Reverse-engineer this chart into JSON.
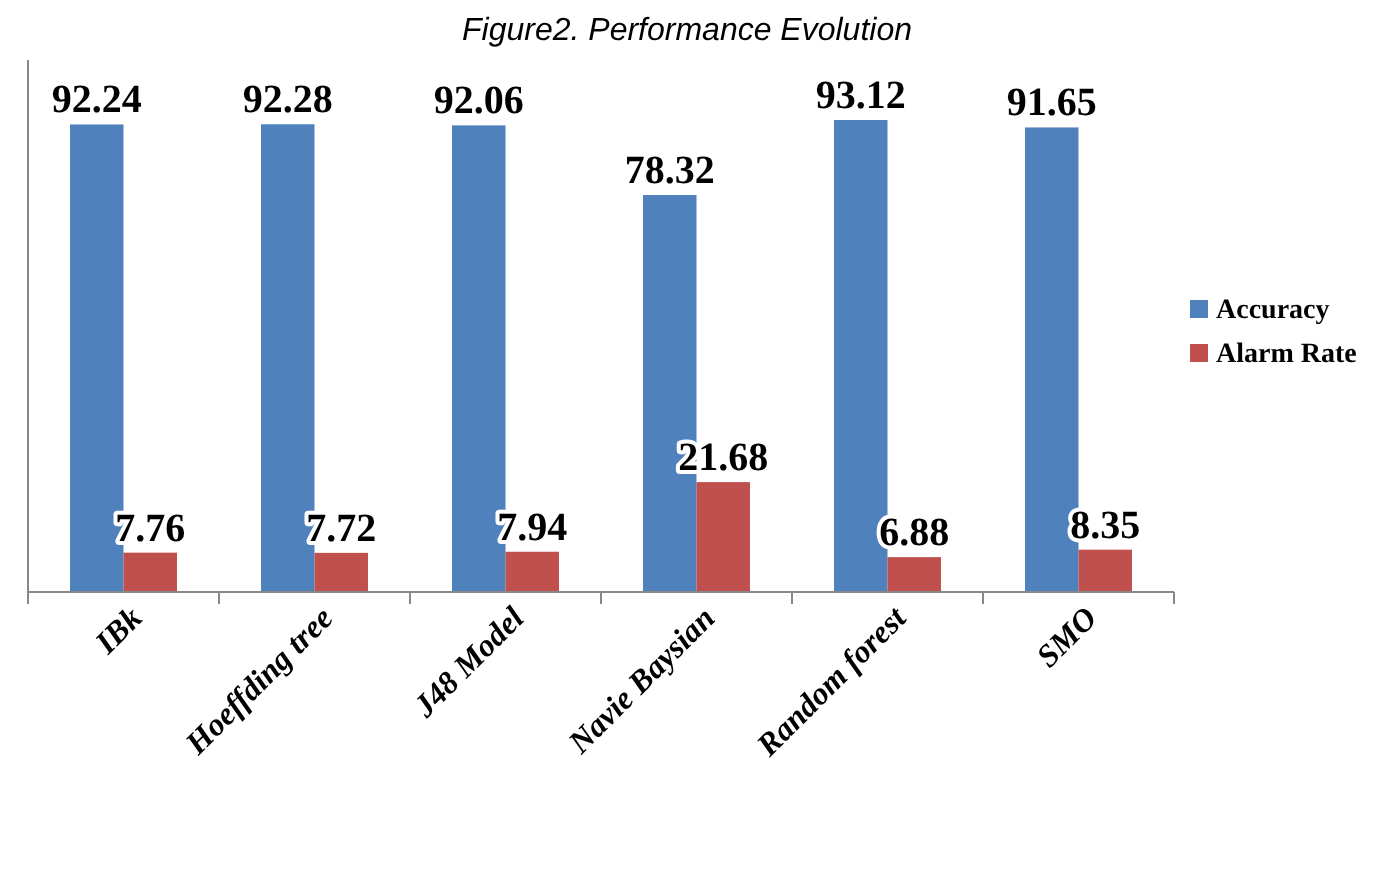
{
  "chart_data": {
    "type": "bar",
    "title": "Figure2. Performance Evolution",
    "categories": [
      "IBk",
      "Hoeffding tree",
      "J48 Model",
      "Navie Baysian",
      "Random forest",
      "SMO"
    ],
    "series": [
      {
        "name": "Accuracy",
        "color": "#4f81bd",
        "values": [
          92.24,
          92.28,
          92.06,
          78.32,
          93.12,
          91.65
        ]
      },
      {
        "name": "Alarm Rate",
        "color": "#c0504d",
        "values": [
          7.76,
          7.72,
          7.94,
          21.68,
          6.88,
          8.35
        ]
      }
    ],
    "data_labels": true,
    "legend": "right",
    "grid": false
  }
}
